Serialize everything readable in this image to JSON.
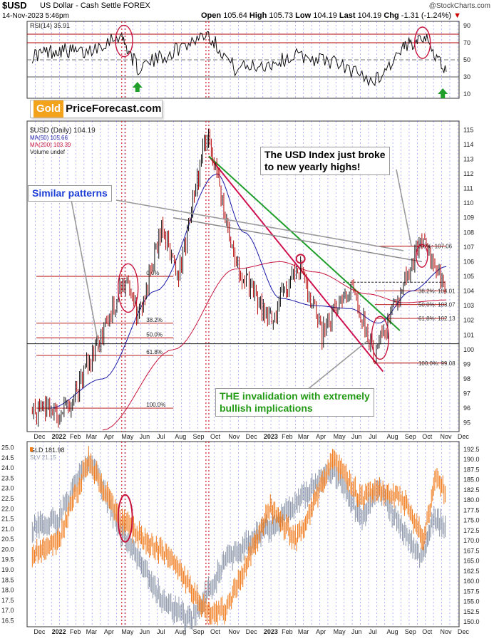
{
  "header": {
    "symbol": "$USD",
    "description": "US Dollar - Cash Settle FOREX",
    "timestamp": "14-Nov-2023 5:46pm",
    "open_label": "Open",
    "open": "105.64",
    "high_label": "High",
    "high": "105.73",
    "low_label": "Low",
    "low": "104.19",
    "last_label": "Last",
    "last": "104.19",
    "chg_label": "Chg",
    "chg": "-1.31 (-1.24%)",
    "chg_arrow": "▼",
    "credit": "@StockCharts.com"
  },
  "logo": {
    "gold": "Gold",
    "rest": "PriceForecast.com"
  },
  "annotations": {
    "usd": [
      "The USD Index just broke",
      "to new yearly highs!"
    ],
    "similar": "Similar patterns",
    "invalidation": [
      "THE invalidation with extremely",
      "bullish implications"
    ]
  },
  "colors": {
    "price_up": "#111111",
    "price_down": "#b30000",
    "ma50": "#1a1aa6",
    "ma200": "#c8143c",
    "gld": "#f07a1a",
    "slv": "#8c96a8",
    "red_trendline": "#d0114e",
    "green_trendline": "#1f9e2a",
    "circle": "#c8143c",
    "grid_blue": "#3a3af0",
    "grid_red": "#d02030",
    "arrow_green": "#1f9e2a"
  },
  "chart_data": [
    {
      "type": "line",
      "panel": "RSI",
      "legend": "RSI(14) 35.91",
      "yticks": [
        10,
        30,
        50,
        70,
        90
      ],
      "ylim": [
        5,
        95
      ],
      "reference_lines": [
        30,
        50,
        70,
        80
      ],
      "x": [
        "2021-12-01",
        "2022-01-15",
        "2022-03-01",
        "2022-05-01",
        "2022-06-01",
        "2022-08-01",
        "2022-09-28",
        "2022-11-15",
        "2023-01-15",
        "2023-03-01",
        "2023-05-01",
        "2023-07-14",
        "2023-09-01",
        "2023-10-03",
        "2023-11-14"
      ],
      "values": [
        55,
        62,
        58,
        80,
        40,
        60,
        82,
        40,
        45,
        55,
        48,
        25,
        62,
        80,
        36
      ]
    },
    {
      "type": "line",
      "panel": "USD",
      "legend": [
        "$USD (Daily) 104.19",
        "MA(50) 105.66",
        "MA(200) 103.39",
        "Volume undef"
      ],
      "yticks": [
        95,
        96,
        97,
        98,
        99,
        100,
        101,
        102,
        103,
        104,
        105,
        106,
        107,
        108,
        109,
        110,
        111,
        112,
        113,
        114,
        115
      ],
      "ylim": [
        94.4,
        115.6
      ],
      "xticks": [
        "Dec",
        "2022",
        "Feb",
        "Mar",
        "Apr",
        "May",
        "Jun",
        "Jul",
        "Aug",
        "Sep",
        "Oct",
        "Nov",
        "Dec",
        "2023",
        "Feb",
        "Mar",
        "Apr",
        "May",
        "Jun",
        "Jul",
        "Aug",
        "Sep",
        "Oct",
        "Nov",
        "Dec"
      ],
      "series": [
        {
          "name": "$USD (Daily)",
          "x": [
            "2021-12-01",
            "2022-01-10",
            "2022-02-01",
            "2022-03-07",
            "2022-05-13",
            "2022-06-01",
            "2022-07-14",
            "2022-08-10",
            "2022-09-28",
            "2022-11-15",
            "2023-01-15",
            "2023-03-08",
            "2023-04-14",
            "2023-05-31",
            "2023-07-14",
            "2023-08-15",
            "2023-10-03",
            "2023-11-14"
          ],
          "values": [
            96.0,
            95.5,
            96.0,
            99.0,
            105.0,
            102.0,
            108.5,
            105.0,
            114.8,
            106.0,
            102.0,
            105.9,
            100.9,
            104.5,
            99.6,
            103.0,
            107.2,
            104.19
          ]
        },
        {
          "name": "MA(50)",
          "x": [
            "2022-01-01",
            "2022-04-01",
            "2022-07-01",
            "2022-10-15",
            "2022-12-01",
            "2023-02-01",
            "2023-04-01",
            "2023-06-01",
            "2023-07-20",
            "2023-09-15",
            "2023-11-14"
          ],
          "values": [
            96.0,
            98.0,
            104.0,
            112.0,
            108.0,
            103.5,
            103.0,
            102.8,
            101.8,
            104.0,
            105.66
          ]
        },
        {
          "name": "MA(200)",
          "x": [
            "2022-04-01",
            "2022-08-01",
            "2022-11-15",
            "2023-02-01",
            "2023-04-01",
            "2023-07-01",
            "2023-09-01",
            "2023-11-14"
          ],
          "values": [
            94.5,
            100.0,
            105.5,
            106.0,
            105.3,
            103.8,
            103.2,
            103.39
          ]
        }
      ],
      "fib_2022": [
        {
          "label": "0.0%",
          "value": 105.0
        },
        {
          "label": "38.2%",
          "value": 101.8
        },
        {
          "label": "50.0%",
          "value": 100.8
        },
        {
          "label": "61.8%",
          "value": 99.6
        },
        {
          "label": "100.0%",
          "value": 96.0
        }
      ],
      "fib_2023": [
        {
          "label": "0.0%: 107.06",
          "value": 107.06
        },
        {
          "label": "38.2%: 104.01",
          "value": 104.01
        },
        {
          "label": "50.0%: 103.07",
          "value": 103.07
        },
        {
          "label": "61.8%: 102.13",
          "value": 102.13
        },
        {
          "label": "100.0%: 99.08",
          "value": 99.08
        }
      ],
      "support_level": 100.4,
      "breakout_level": 104.6,
      "trendlines": [
        {
          "name": "red",
          "from": [
            "2022-10-01",
            113.2
          ],
          "to": [
            "2023-07-28",
            98.5
          ]
        },
        {
          "name": "green",
          "from": [
            "2022-10-01",
            113.2
          ],
          "to": [
            "2023-08-26",
            101.3
          ]
        },
        {
          "name": "gray-similar",
          "from": [
            "2022-08-01",
            109.0
          ],
          "to": [
            "2023-10-03",
            106.0
          ]
        }
      ]
    },
    {
      "type": "line",
      "panel": "GLD/SLV",
      "legend": [
        "GLD 181.98",
        "SLV 21.15"
      ],
      "left_yticks": [
        16.5,
        17.0,
        17.5,
        18.0,
        18.5,
        19.0,
        19.5,
        20.0,
        20.5,
        21.0,
        21.5,
        22.0,
        22.5,
        23.0,
        23.5,
        24.0,
        24.5,
        25.0
      ],
      "right_yticks": [
        150.0,
        152.5,
        155.0,
        157.5,
        160.0,
        162.5,
        165.0,
        167.5,
        170.0,
        172.5,
        175.0,
        177.5,
        180.0,
        182.5,
        185.0,
        187.5,
        190.0,
        192.5
      ],
      "xticks": [
        "Dec",
        "2022",
        "Feb",
        "Mar",
        "Apr",
        "May",
        "Jun",
        "Jul",
        "Aug",
        "Sep",
        "Oct",
        "Nov",
        "Dec",
        "2023",
        "Feb",
        "Mar",
        "Apr",
        "May",
        "Jun",
        "Jul",
        "Aug",
        "Sep",
        "Oct",
        "Nov",
        "Dec"
      ],
      "series": [
        {
          "name": "GLD",
          "axis": "right",
          "x": [
            "2021-12-01",
            "2022-01-15",
            "2022-03-08",
            "2022-05-01",
            "2022-06-15",
            "2022-08-01",
            "2022-09-28",
            "2022-11-01",
            "2023-01-15",
            "2023-03-01",
            "2023-05-04",
            "2023-06-20",
            "2023-07-20",
            "2023-09-01",
            "2023-10-06",
            "2023-10-27",
            "2023-11-14"
          ],
          "values": [
            167.0,
            170.0,
            190.0,
            175.0,
            170.0,
            165.0,
            152.5,
            153.0,
            178.0,
            170.0,
            190.0,
            180.0,
            183.0,
            180.0,
            170.5,
            185.0,
            181.98
          ]
        },
        {
          "name": "SLV",
          "axis": "left",
          "x": [
            "2021-12-01",
            "2022-01-15",
            "2022-03-08",
            "2022-05-01",
            "2022-07-14",
            "2022-09-01",
            "2022-11-01",
            "2023-02-01",
            "2023-05-04",
            "2023-06-20",
            "2023-07-20",
            "2023-10-03",
            "2023-10-20",
            "2023-11-14"
          ],
          "values": [
            21.0,
            21.5,
            24.5,
            21.0,
            17.5,
            16.5,
            19.5,
            21.5,
            24.0,
            21.5,
            23.0,
            19.5,
            21.5,
            21.15
          ]
        }
      ]
    }
  ]
}
